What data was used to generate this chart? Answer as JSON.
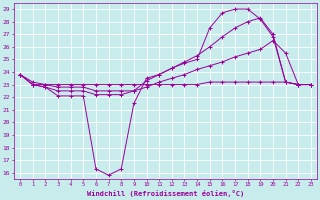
{
  "bg_color": "#c8ecec",
  "grid_color": "#ffffff",
  "line_color": "#990099",
  "xlabel": "Windchill (Refroidissement éolien,°C)",
  "xlabel_color": "#990099",
  "tick_color": "#990099",
  "xlim": [
    -0.5,
    23.5
  ],
  "ylim": [
    15.5,
    29.5
  ],
  "yticks": [
    16,
    17,
    18,
    19,
    20,
    21,
    22,
    23,
    24,
    25,
    26,
    27,
    28,
    29
  ],
  "xticks": [
    0,
    1,
    2,
    3,
    4,
    5,
    6,
    7,
    8,
    9,
    10,
    11,
    12,
    13,
    14,
    15,
    16,
    17,
    18,
    19,
    20,
    21,
    22,
    23
  ],
  "series1_x": [
    0,
    1,
    2,
    3,
    4,
    5,
    6,
    7,
    8,
    9,
    10,
    11,
    12,
    13,
    14,
    15,
    16,
    17,
    18,
    19,
    20,
    21,
    22,
    23
  ],
  "series1_y": [
    23.8,
    23.0,
    22.8,
    22.1,
    22.1,
    22.1,
    16.3,
    15.8,
    16.3,
    21.5,
    23.5,
    23.8,
    24.3,
    24.7,
    25.0,
    27.5,
    28.7,
    29.0,
    29.0,
    28.2,
    26.8,
    23.2,
    23.0,
    23.0
  ],
  "series2_x": [
    0,
    1,
    2,
    3,
    4,
    5,
    6,
    7,
    8,
    9,
    10,
    11,
    12,
    13,
    14,
    15,
    16,
    17,
    18,
    19,
    20,
    21,
    22,
    23
  ],
  "series2_y": [
    23.8,
    23.0,
    22.8,
    22.5,
    22.5,
    22.5,
    22.2,
    22.2,
    22.2,
    22.5,
    23.3,
    23.8,
    24.3,
    24.8,
    25.3,
    26.0,
    26.8,
    27.5,
    28.0,
    28.3,
    27.0,
    23.2,
    23.0,
    23.0
  ],
  "series3_x": [
    0,
    1,
    2,
    3,
    4,
    5,
    6,
    7,
    8,
    9,
    10,
    11,
    12,
    13,
    14,
    15,
    16,
    17,
    18,
    19,
    20,
    21,
    22,
    23
  ],
  "series3_y": [
    23.8,
    23.2,
    23.0,
    22.8,
    22.8,
    22.8,
    22.5,
    22.5,
    22.5,
    22.5,
    22.8,
    23.2,
    23.5,
    23.8,
    24.2,
    24.5,
    24.8,
    25.2,
    25.5,
    25.8,
    26.5,
    25.5,
    23.0,
    23.0
  ],
  "series4_x": [
    0,
    1,
    2,
    3,
    4,
    5,
    6,
    7,
    8,
    9,
    10,
    11,
    12,
    13,
    14,
    15,
    16,
    17,
    18,
    19,
    20,
    21,
    22,
    23
  ],
  "series4_y": [
    23.8,
    23.0,
    23.0,
    23.0,
    23.0,
    23.0,
    23.0,
    23.0,
    23.0,
    23.0,
    23.0,
    23.0,
    23.0,
    23.0,
    23.0,
    23.2,
    23.2,
    23.2,
    23.2,
    23.2,
    23.2,
    23.2,
    23.0,
    23.0
  ],
  "figwidth": 3.2,
  "figheight": 2.0,
  "dpi": 100
}
